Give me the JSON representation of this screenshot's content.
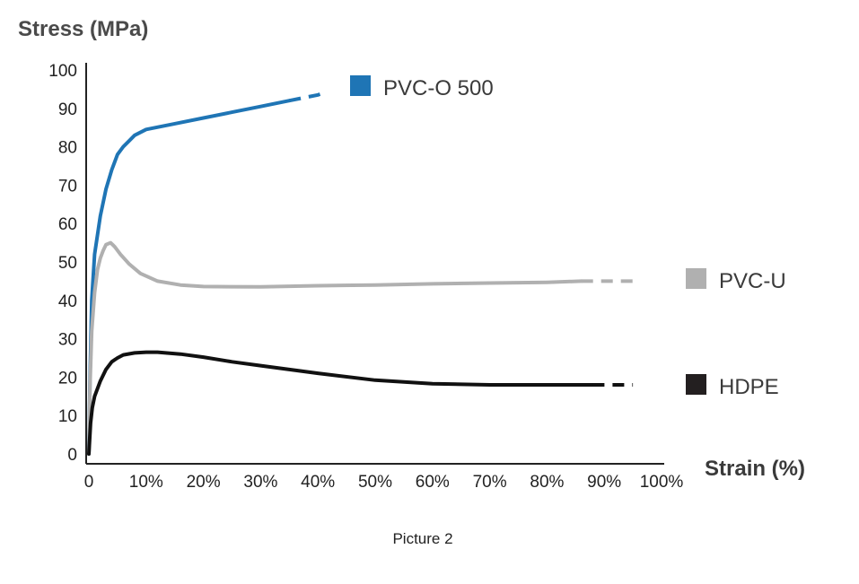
{
  "chart_data": {
    "type": "line",
    "ylabel": "Stress (MPa)",
    "xlabel": "Strain (%)",
    "caption": "Picture 2",
    "xlim": [
      0,
      100
    ],
    "ylim": [
      0,
      100
    ],
    "x_ticks": [
      "0",
      "10%",
      "20%",
      "30%",
      "40%",
      "50%",
      "60%",
      "70%",
      "80%",
      "90%",
      "100%"
    ],
    "y_ticks": [
      "0",
      "10",
      "20",
      "30",
      "40",
      "50",
      "60",
      "70",
      "80",
      "90",
      "100"
    ],
    "series": [
      {
        "name": "PVC-O 500",
        "color": "#1f75b5",
        "points": [
          [
            0,
            0
          ],
          [
            0.2,
            20
          ],
          [
            0.5,
            40
          ],
          [
            1,
            52
          ],
          [
            2,
            62
          ],
          [
            3,
            69
          ],
          [
            4,
            74
          ],
          [
            5,
            78
          ],
          [
            6,
            80
          ],
          [
            7,
            81.5
          ],
          [
            8,
            83
          ],
          [
            10,
            84.5
          ],
          [
            15,
            86
          ],
          [
            20,
            87.5
          ],
          [
            25,
            89
          ],
          [
            30,
            90.5
          ],
          [
            35,
            92
          ]
        ],
        "dashed_points": [
          [
            35,
            92
          ],
          [
            40,
            93.5
          ],
          [
            41,
            94
          ]
        ]
      },
      {
        "name": "PVC-U",
        "color": "#b0b0b0",
        "points": [
          [
            0,
            0
          ],
          [
            0.2,
            18
          ],
          [
            0.5,
            32
          ],
          [
            1,
            42
          ],
          [
            1.5,
            48
          ],
          [
            2,
            51
          ],
          [
            2.5,
            53
          ],
          [
            3,
            54.5
          ],
          [
            3.8,
            55
          ],
          [
            4.5,
            54
          ],
          [
            5.5,
            52
          ],
          [
            7,
            49.5
          ],
          [
            9,
            47
          ],
          [
            12,
            45
          ],
          [
            16,
            44
          ],
          [
            20,
            43.6
          ],
          [
            30,
            43.5
          ],
          [
            40,
            43.8
          ],
          [
            50,
            44
          ],
          [
            60,
            44.3
          ],
          [
            70,
            44.5
          ],
          [
            80,
            44.7
          ],
          [
            86,
            45
          ]
        ],
        "dashed_points": [
          [
            86,
            45
          ],
          [
            95,
            45
          ]
        ]
      },
      {
        "name": "HDPE",
        "color": "#111111",
        "points": [
          [
            0,
            0
          ],
          [
            0.3,
            8
          ],
          [
            0.6,
            12
          ],
          [
            1,
            15
          ],
          [
            2,
            19
          ],
          [
            3,
            22
          ],
          [
            4,
            24
          ],
          [
            5,
            25
          ],
          [
            6,
            25.8
          ],
          [
            8,
            26.3
          ],
          [
            10,
            26.5
          ],
          [
            12,
            26.5
          ],
          [
            16,
            26
          ],
          [
            20,
            25.2
          ],
          [
            25,
            24
          ],
          [
            30,
            23
          ],
          [
            40,
            21
          ],
          [
            50,
            19.2
          ],
          [
            60,
            18.3
          ],
          [
            70,
            18
          ],
          [
            80,
            18
          ],
          [
            88,
            18
          ]
        ],
        "dashed_points": [
          [
            88,
            18
          ],
          [
            95,
            18
          ]
        ]
      }
    ],
    "legend": [
      {
        "label": "PVC-O 500",
        "color": "#1f75b5",
        "placement": "right-top"
      },
      {
        "label": "PVC-U",
        "color": "#b0b0b0",
        "placement": "right-middle"
      },
      {
        "label": "HDPE",
        "color": "#231f20",
        "placement": "right-bottom"
      }
    ],
    "grid": false
  }
}
